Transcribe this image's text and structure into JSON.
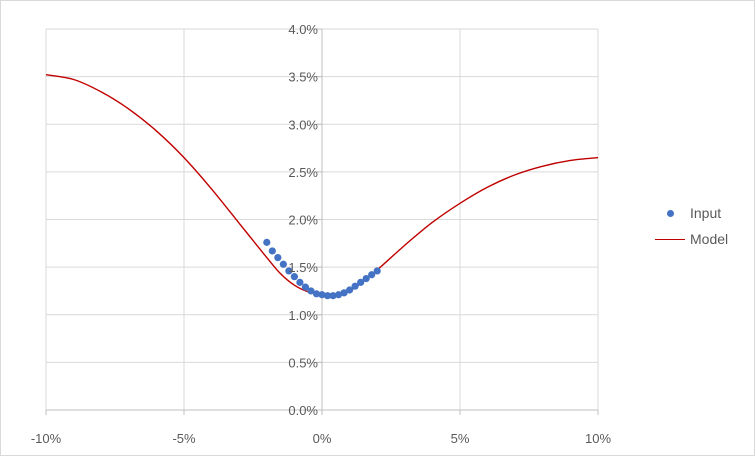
{
  "chart_data": {
    "type": "scatter",
    "xlim": [
      -0.1,
      0.1
    ],
    "ylim": [
      0.0,
      0.04
    ],
    "x_ticks": [
      -0.1,
      -0.05,
      0.0,
      0.05,
      0.1
    ],
    "x_tick_labels": [
      "-10%",
      "-5%",
      "0%",
      "5%",
      "10%"
    ],
    "y_ticks": [
      0.0,
      0.005,
      0.01,
      0.015,
      0.02,
      0.025,
      0.03,
      0.035,
      0.04
    ],
    "y_tick_labels": [
      "0.0%",
      "0.5%",
      "1.0%",
      "1.5%",
      "2.0%",
      "2.5%",
      "3.0%",
      "3.5%",
      "4.0%"
    ],
    "grid": true,
    "legend_position": "right",
    "series": [
      {
        "name": "Input",
        "kind": "markers",
        "color": "#4472c4",
        "x": [
          -0.02,
          -0.018,
          -0.016,
          -0.014,
          -0.012,
          -0.01,
          -0.008,
          -0.006,
          -0.004,
          -0.002,
          0.0,
          0.002,
          0.004,
          0.006,
          0.008,
          0.01,
          0.012,
          0.014,
          0.016,
          0.018,
          0.02
        ],
        "y": [
          0.0176,
          0.0167,
          0.016,
          0.0153,
          0.0146,
          0.014,
          0.0134,
          0.0129,
          0.0125,
          0.0122,
          0.0121,
          0.012,
          0.012,
          0.0121,
          0.0123,
          0.0126,
          0.013,
          0.0134,
          0.0138,
          0.0142,
          0.0146
        ]
      },
      {
        "name": "Model",
        "kind": "line",
        "color": "#c00000",
        "x": [
          -0.1,
          -0.09,
          -0.08,
          -0.07,
          -0.06,
          -0.05,
          -0.04,
          -0.03,
          -0.025,
          -0.02,
          -0.015,
          -0.01,
          -0.005,
          0.0,
          0.005,
          0.01,
          0.015,
          0.02,
          0.03,
          0.04,
          0.05,
          0.06,
          0.07,
          0.08,
          0.09,
          0.1
        ],
        "y": [
          0.0352,
          0.0347,
          0.0334,
          0.0316,
          0.0293,
          0.0265,
          0.0232,
          0.0196,
          0.0178,
          0.016,
          0.0143,
          0.0131,
          0.0124,
          0.0121,
          0.0121,
          0.0125,
          0.0135,
          0.0147,
          0.0173,
          0.0197,
          0.0217,
          0.0234,
          0.0247,
          0.0256,
          0.0262,
          0.0265
        ]
      }
    ]
  }
}
